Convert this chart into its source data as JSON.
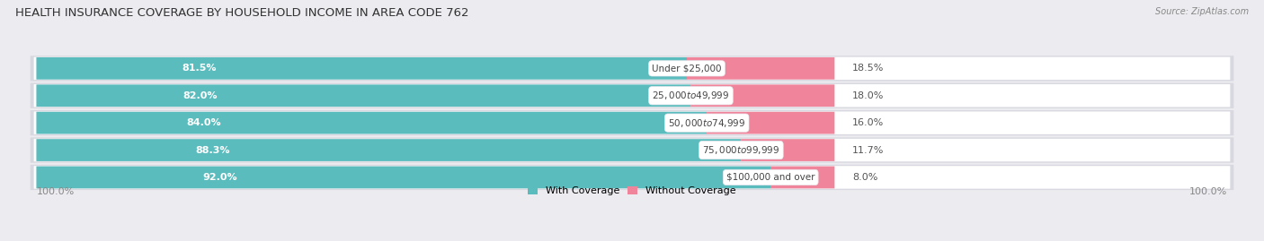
{
  "title": "HEALTH INSURANCE COVERAGE BY HOUSEHOLD INCOME IN AREA CODE 762",
  "source": "Source: ZipAtlas.com",
  "categories": [
    "Under $25,000",
    "$25,000 to $49,999",
    "$50,000 to $74,999",
    "$75,000 to $99,999",
    "$100,000 and over"
  ],
  "with_coverage": [
    81.5,
    82.0,
    84.0,
    88.3,
    92.0
  ],
  "without_coverage": [
    18.5,
    18.0,
    16.0,
    11.7,
    8.0
  ],
  "color_coverage": "#5BBCBE",
  "color_no_coverage": "#F0849A",
  "bg_color": "#ebebf0",
  "bar_bg_color": "#ffffff",
  "bar_shadow_color": "#d8d8e0",
  "title_fontsize": 9.5,
  "label_fontsize": 8.0,
  "cat_fontsize": 7.5,
  "legend_fontsize": 8.0,
  "bar_height": 0.68,
  "figsize": [
    14.06,
    2.69
  ],
  "dpi": 100
}
